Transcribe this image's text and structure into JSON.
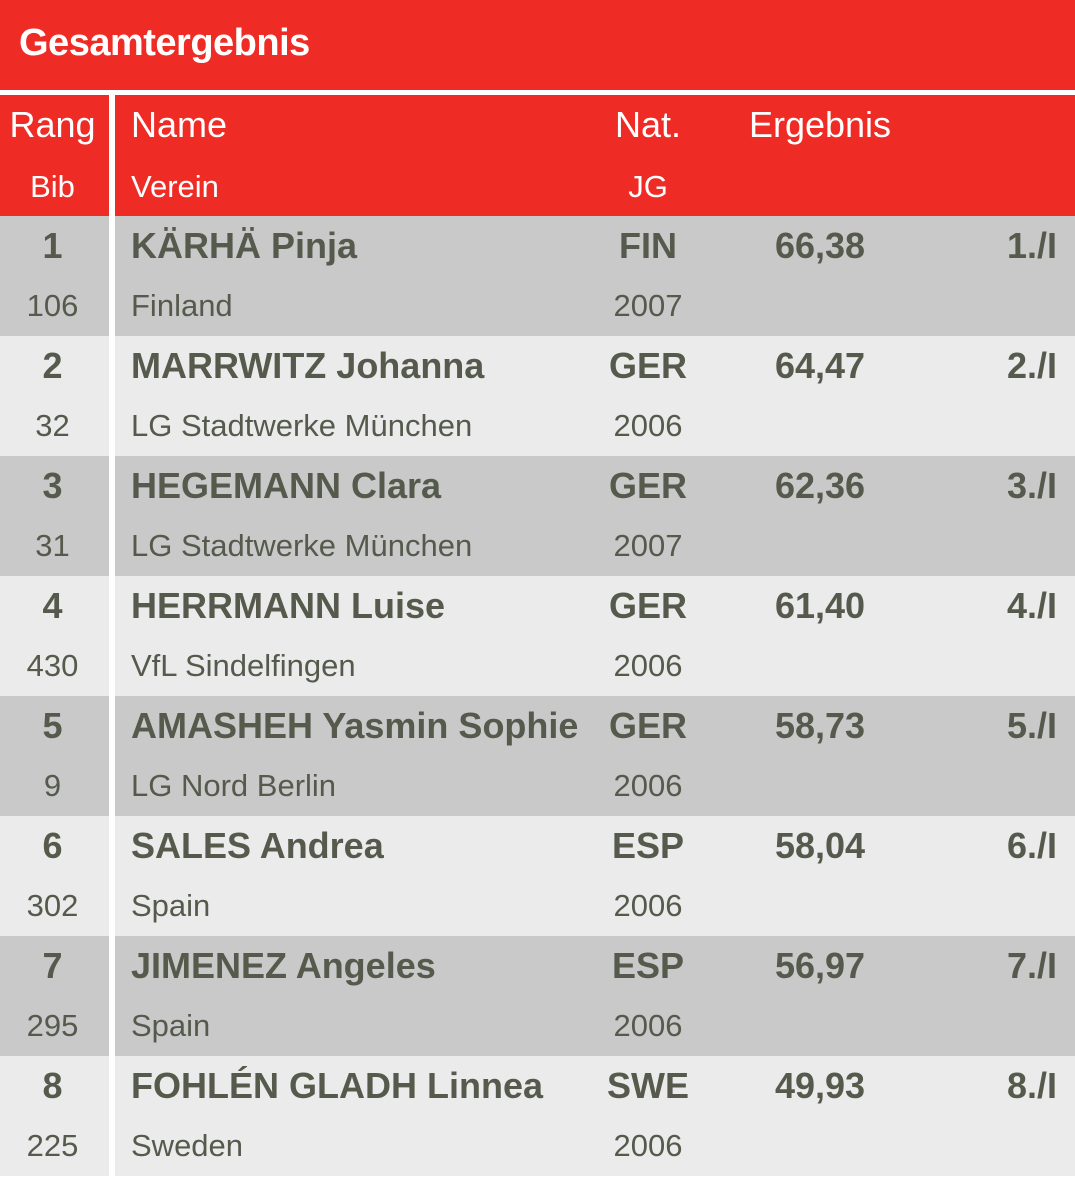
{
  "title": "Gesamtergebnis",
  "header": {
    "rank": "Rang",
    "bib": "Bib",
    "name": "Name",
    "club": "Verein",
    "nat": "Nat.",
    "jg": "JG",
    "result": "Ergebnis"
  },
  "rows": [
    {
      "rank": "1",
      "bib": "106",
      "name": "KÄRHÄ Pinja",
      "club": "Finland",
      "nat": "FIN",
      "jg": "2007",
      "result": "66,38",
      "place": "1./I"
    },
    {
      "rank": "2",
      "bib": "32",
      "name": "MARRWITZ Johanna",
      "club": "LG Stadtwerke München",
      "nat": "GER",
      "jg": "2006",
      "result": "64,47",
      "place": "2./I"
    },
    {
      "rank": "3",
      "bib": "31",
      "name": "HEGEMANN Clara",
      "club": "LG Stadtwerke München",
      "nat": "GER",
      "jg": "2007",
      "result": "62,36",
      "place": "3./I"
    },
    {
      "rank": "4",
      "bib": "430",
      "name": "HERRMANN Luise",
      "club": "VfL Sindelfingen",
      "nat": "GER",
      "jg": "2006",
      "result": "61,40",
      "place": "4./I"
    },
    {
      "rank": "5",
      "bib": "9",
      "name": "AMASHEH Yasmin Sophie",
      "club": "LG Nord Berlin",
      "nat": "GER",
      "jg": "2006",
      "result": "58,73",
      "place": "5./I"
    },
    {
      "rank": "6",
      "bib": "302",
      "name": "SALES Andrea",
      "club": "Spain",
      "nat": "ESP",
      "jg": "2006",
      "result": "58,04",
      "place": "6./I"
    },
    {
      "rank": "7",
      "bib": "295",
      "name": "JIMENEZ Angeles",
      "club": "Spain",
      "nat": "ESP",
      "jg": "2006",
      "result": "56,97",
      "place": "7./I"
    },
    {
      "rank": "8",
      "bib": "225",
      "name": "FOHLÉN GLADH Linnea",
      "club": "Sweden",
      "nat": "SWE",
      "jg": "2006",
      "result": "49,93",
      "place": "8./I"
    }
  ],
  "colors": {
    "header_red": "#ee2c25",
    "row_dark": "#c9c9c9",
    "row_light": "#ebebeb",
    "text": "#555a4d"
  }
}
